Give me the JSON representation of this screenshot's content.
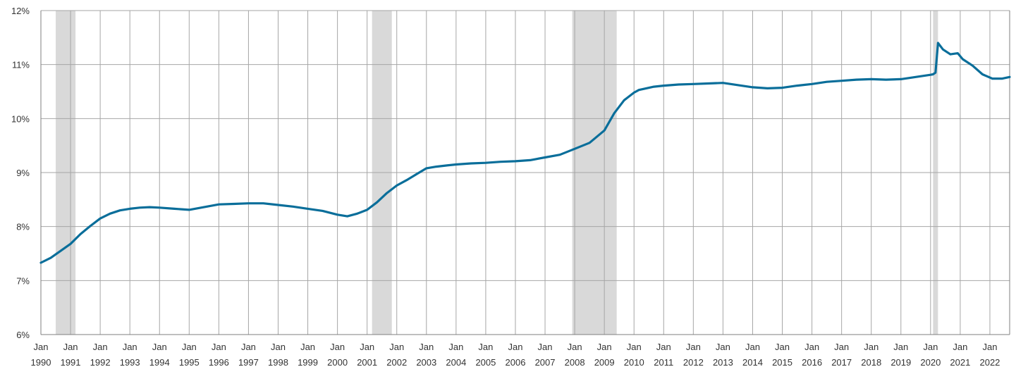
{
  "chart_data": {
    "type": "line",
    "title": "",
    "xlabel": "",
    "ylabel": "",
    "ylim": [
      6,
      12
    ],
    "xlim": [
      "1990-01",
      "2022-09"
    ],
    "y_ticks": [
      "6%",
      "7%",
      "8%",
      "9%",
      "10%",
      "11%",
      "12%"
    ],
    "y_tick_values": [
      6,
      7,
      8,
      9,
      10,
      11,
      12
    ],
    "x_tick_top": "Jan",
    "x_tick_years": [
      "1990",
      "1991",
      "1992",
      "1993",
      "1994",
      "1995",
      "1996",
      "1997",
      "1998",
      "1999",
      "2000",
      "2001",
      "2002",
      "2003",
      "2004",
      "2005",
      "2006",
      "2007",
      "2008",
      "2009",
      "2010",
      "2011",
      "2012",
      "2013",
      "2014",
      "2015",
      "2016",
      "2017",
      "2018",
      "2019",
      "2020",
      "2021",
      "2022"
    ],
    "grid": true,
    "recession_shading": [
      {
        "start": "1990-07",
        "end": "1991-03"
      },
      {
        "start": "2001-03",
        "end": "2001-11"
      },
      {
        "start": "2007-12",
        "end": "2009-06"
      },
      {
        "start": "2020-02",
        "end": "2020-04"
      }
    ],
    "colors": {
      "line": "#0A6E9A",
      "recession": "#D9D9D9",
      "grid": "#A6A6A6",
      "axis": "#7F7F7F"
    },
    "series": [
      {
        "x": [
          "1990-01",
          "1990-05",
          "1990-09",
          "1991-01",
          "1991-05",
          "1991-09",
          "1992-01",
          "1992-05",
          "1992-09",
          "1993-01",
          "1993-05",
          "1993-09",
          "1994-01",
          "1994-07",
          "1995-01",
          "1995-07",
          "1996-01",
          "1996-07",
          "1997-01",
          "1997-07",
          "1998-01",
          "1998-07",
          "1999-01",
          "1999-07",
          "2000-01",
          "2000-05",
          "2000-09",
          "2001-01",
          "2001-05",
          "2001-09",
          "2002-01",
          "2002-05",
          "2002-09",
          "2003-01",
          "2003-05",
          "2003-09",
          "2004-01",
          "2004-07",
          "2005-01",
          "2005-07",
          "2006-01",
          "2006-07",
          "2007-01",
          "2007-07",
          "2008-01",
          "2008-07",
          "2009-01",
          "2009-05",
          "2009-09",
          "2010-01",
          "2010-03",
          "2010-05",
          "2010-09",
          "2011-01",
          "2011-07",
          "2012-01",
          "2012-07",
          "2013-01",
          "2013-07",
          "2014-01",
          "2014-07",
          "2015-01",
          "2015-07",
          "2016-01",
          "2016-07",
          "2017-01",
          "2017-07",
          "2018-01",
          "2018-07",
          "2019-01",
          "2019-07",
          "2020-01",
          "2020-02",
          "2020-03",
          "2020-04",
          "2020-06",
          "2020-09",
          "2020-12",
          "2021-02",
          "2021-06",
          "2021-10",
          "2022-02",
          "2022-06",
          "2022-09"
        ],
        "values": [
          7.33,
          7.42,
          7.55,
          7.68,
          7.86,
          8.01,
          8.15,
          8.24,
          8.3,
          8.33,
          8.35,
          8.36,
          8.35,
          8.33,
          8.31,
          8.36,
          8.41,
          8.42,
          8.43,
          8.43,
          8.4,
          8.37,
          8.33,
          8.29,
          8.22,
          8.19,
          8.24,
          8.31,
          8.45,
          8.62,
          8.76,
          8.86,
          8.97,
          9.08,
          9.11,
          9.13,
          9.15,
          9.17,
          9.18,
          9.2,
          9.21,
          9.23,
          9.28,
          9.33,
          9.44,
          9.55,
          9.78,
          10.1,
          10.34,
          10.48,
          10.53,
          10.55,
          10.59,
          10.61,
          10.63,
          10.64,
          10.65,
          10.66,
          10.62,
          10.58,
          10.56,
          10.57,
          10.61,
          10.64,
          10.68,
          10.7,
          10.72,
          10.73,
          10.72,
          10.73,
          10.77,
          10.81,
          10.82,
          10.85,
          11.4,
          11.28,
          11.19,
          11.21,
          11.1,
          10.98,
          10.82,
          10.74,
          10.74,
          10.77
        ]
      }
    ]
  }
}
